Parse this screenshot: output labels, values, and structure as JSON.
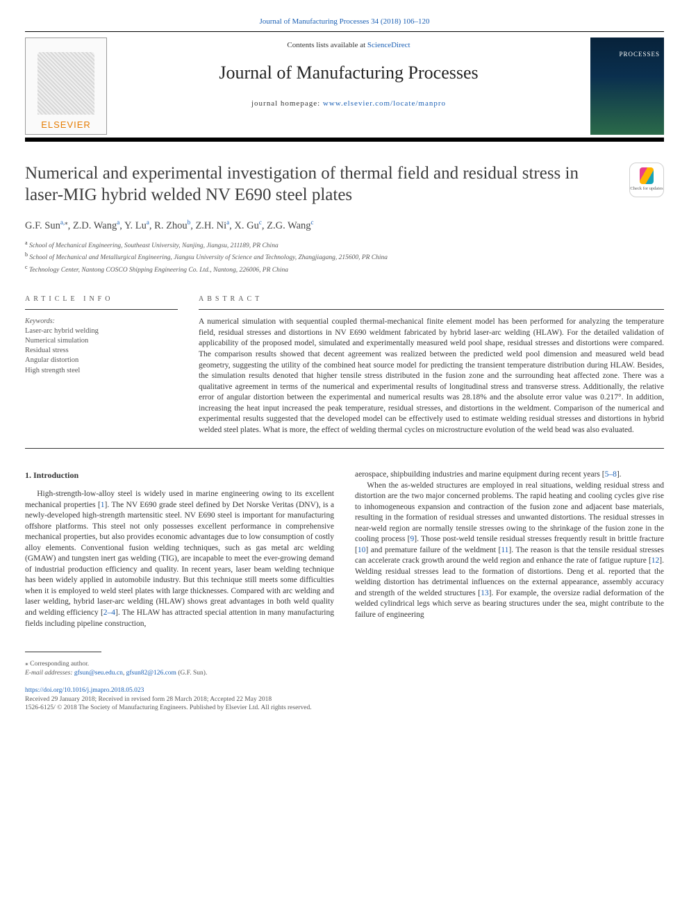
{
  "top_citation_link": "Journal of Manufacturing Processes 34 (2018) 106–120",
  "header": {
    "contents_prefix": "Contents lists available at ",
    "contents_link": "ScienceDirect",
    "journal_name": "Journal of Manufacturing Processes",
    "homepage_prefix": "journal homepage: ",
    "homepage_link": "www.elsevier.com/locate/manpro",
    "publisher_name": "ELSEVIER",
    "cover_overlay": "PROCESSES"
  },
  "article": {
    "title": "Numerical and experimental investigation of thermal field and residual stress in laser-MIG hybrid welded NV E690 steel plates",
    "updates_badge_text": "Check for updates",
    "authors_html": "G.F. Sun<sup>a,</sup><span class='star'>⁎</span>, Z.D. Wang<sup>a</sup>, Y. Lu<sup>a</sup>, R. Zhou<sup>b</sup>, Z.H. Ni<sup>a</sup>, X. Gu<sup>c</sup>, Z.G. Wang<sup>c</sup>",
    "affiliations": [
      {
        "sup": "a",
        "text": "School of Mechanical Engineering, Southeast University, Nanjing, Jiangsu, 211189, PR China"
      },
      {
        "sup": "b",
        "text": "School of Mechanical and Metallurgical Engineering, Jiangsu University of Science and Technology, Zhangjiagang, 215600, PR China"
      },
      {
        "sup": "c",
        "text": "Technology Center, Nantong COSCO Shipping Engineering Co. Ltd., Nantong, 226006, PR China"
      }
    ]
  },
  "info": {
    "heading": "ARTICLE INFO",
    "kw_label": "Keywords:",
    "keywords": [
      "Laser-arc hybrid welding",
      "Numerical simulation",
      "Residual stress",
      "Angular distortion",
      "High strength steel"
    ]
  },
  "abstract": {
    "heading": "ABSTRACT",
    "text": "A numerical simulation with sequential coupled thermal-mechanical finite element model has been performed for analyzing the temperature field, residual stresses and distortions in NV E690 weldment fabricated by hybrid laser-arc welding (HLAW). For the detailed validation of applicability of the proposed model, simulated and experimentally measured weld pool shape, residual stresses and distortions were compared. The comparison results showed that decent agreement was realized between the predicted weld pool dimension and measured weld bead geometry, suggesting the utility of the combined heat source model for predicting the transient temperature distribution during HLAW. Besides, the simulation results denoted that higher tensile stress distributed in the fusion zone and the surrounding heat affected zone. There was a qualitative agreement in terms of the numerical and experimental results of longitudinal stress and transverse stress. Additionally, the relative error of angular distortion between the experimental and numerical results was 28.18% and the absolute error value was 0.217°. In addition, increasing the heat input increased the peak temperature, residual stresses, and distortions in the weldment. Comparison of the numerical and experimental results suggested that the developed model can be effectively used to estimate welding residual stresses and distortions in hybrid welded steel plates. What is more, the effect of welding thermal cycles on microstructure evolution of the weld bead was also evaluated."
  },
  "body": {
    "section_heading": "1. Introduction",
    "col1": "High-strength-low-alloy steel is widely used in marine engineering owing to its excellent mechanical properties [<span class='ref'>1</span>]. The NV E690 grade steel defined by Det Norske Veritas (DNV), is a newly-developed high-strength martensitic steel. NV E690 steel is important for manufacturing offshore platforms. This steel not only possesses excellent performance in comprehensive mechanical properties, but also provides economic advantages due to low consumption of costly alloy elements. Conventional fusion welding techniques, such as gas metal arc welding (GMAW) and tungsten inert gas welding (TIG), are incapable to meet the ever-growing demand of industrial production efficiency and quality. In recent years, laser beam welding technique has been widely applied in automobile industry. But this technique still meets some difficulties when it is employed to weld steel plates with large thicknesses. Compared with arc welding and laser welding, hybrid laser-arc welding (HLAW) shows great advantages in both weld quality and welding efficiency [<span class='ref'>2–4</span>]. The HLAW has attracted special attention in many manufacturing fields including pipeline construction,",
    "col2_lead": "aerospace, shipbuilding industries and marine equipment during recent years [<span class='ref'>5–8</span>].",
    "col2": "When the as-welded structures are employed in real situations, welding residual stress and distortion are the two major concerned problems. The rapid heating and cooling cycles give rise to inhomogeneous expansion and contraction of the fusion zone and adjacent base materials, resulting in the formation of residual stresses and unwanted distortions. The residual stresses in near-weld region are normally tensile stresses owing to the shrinkage of the fusion zone in the cooling process [<span class='ref'>9</span>]. Those post-weld tensile residual stresses frequently result in brittle fracture [<span class='ref'>10</span>] and premature failure of the weldment [<span class='ref'>11</span>]. The reason is that the tensile residual stresses can accelerate crack growth around the weld region and enhance the rate of fatigue rupture [<span class='ref'>12</span>]. Welding residual stresses lead to the formation of distortions. Deng et al. reported that the welding distortion has detrimental influences on the external appearance, assembly accuracy and strength of the welded structures [<span class='ref'>13</span>]. For example, the oversize radial deformation of the welded cylindrical legs which serve as bearing structures under the sea, might contribute to the failure of engineering"
  },
  "footer": {
    "corr_label": "⁎ Corresponding author.",
    "email_label": "E-mail addresses:",
    "emails": [
      "gfsun@seu.edu.cn",
      "gfsun82@126.com"
    ],
    "email_attrib": " (G.F. Sun).",
    "doi": "https://doi.org/10.1016/j.jmapro.2018.05.023",
    "received": "Received 29 January 2018; Received in revised form 28 March 2018; Accepted 22 May 2018",
    "copyright": "1526-6125/ © 2018 The Society of Manufacturing Engineers. Published by Elsevier Ltd. All rights reserved."
  },
  "colors": {
    "link": "#1a5fb4",
    "publisher_orange": "#e57b00",
    "rule": "#000000",
    "text": "#333333"
  }
}
